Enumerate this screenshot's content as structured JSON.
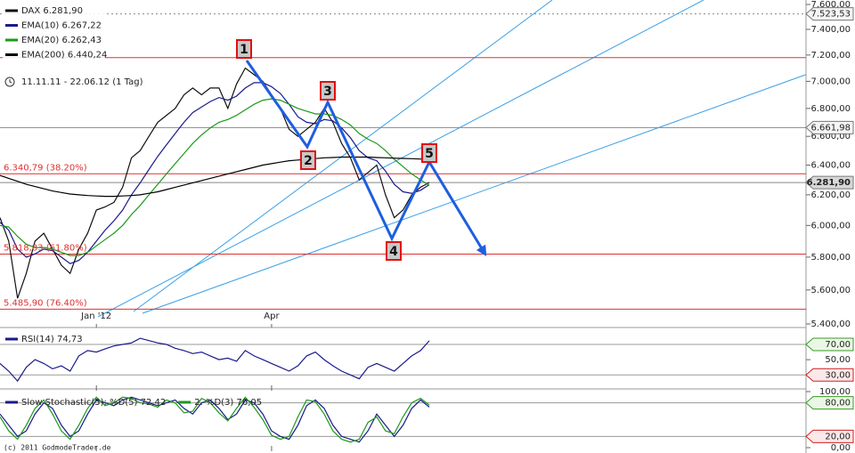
{
  "source": "(c) 2011 GodmodeTrader.de",
  "chart_data": [
    {
      "type": "line",
      "subtitle": "11.11.11 - 22.06.12 (1 Tag)",
      "log_scale": true,
      "legend": "top-left",
      "xlim": [
        0,
        92
      ],
      "ylim": [
        5400,
        7600
      ],
      "xticks": [
        {
          "value": 11,
          "label": "Jan '12"
        },
        {
          "value": 31,
          "label": "Apr"
        }
      ],
      "yticks": [
        {
          "value": 7600,
          "label": "7.600,00"
        },
        {
          "value": 7400,
          "label": "7.400,00"
        },
        {
          "value": 7200,
          "label": "7.200,00"
        },
        {
          "value": 7000,
          "label": "7.000,00"
        },
        {
          "value": 6800,
          "label": "6.800,00"
        },
        {
          "value": 6600,
          "label": "6.600,00"
        },
        {
          "value": 6400,
          "label": "6.400,00"
        },
        {
          "value": 6200,
          "label": "6.200,00"
        },
        {
          "value": 6000,
          "label": "6.000,00"
        },
        {
          "value": 5800,
          "label": "5.800,00"
        },
        {
          "value": 5600,
          "label": "5.600,00"
        },
        {
          "value": 5400,
          "label": "5.400,00"
        }
      ],
      "levels": [
        {
          "value": 7523.53,
          "color": "#888888",
          "style": "dotted",
          "tag": "7.523,53"
        },
        {
          "value": 7180,
          "color": "#e03030"
        },
        {
          "value": 6661.98,
          "color": "#888888",
          "tag": "6.661,98"
        },
        {
          "value": 6340.79,
          "color": "#e03030",
          "label": "6.340,79 (38.20%)"
        },
        {
          "value": 6281.9,
          "color": "#888888",
          "tag": "6.281,90"
        },
        {
          "value": 5818.83,
          "color": "#e03030",
          "label": "5.818,83 (61.80%)"
        },
        {
          "value": 5485.9,
          "color": "#e03030",
          "label": "5.485,90 (76.40%)"
        }
      ],
      "waves": [
        "1",
        "2",
        "3",
        "4",
        "5"
      ],
      "series": [
        {
          "name": "DAX 6.281,90",
          "color": "#111111",
          "values": [
            6050,
            5900,
            5550,
            5700,
            5900,
            5950,
            5850,
            5750,
            5700,
            5850,
            5950,
            6100,
            6120,
            6150,
            6250,
            6450,
            6500,
            6600,
            6700,
            6750,
            6800,
            6900,
            6950,
            6900,
            6950,
            6950,
            6800,
            6980,
            7100,
            7050,
            7000,
            6900,
            6800,
            6650,
            6600,
            6650,
            6700,
            6800,
            6700,
            6550,
            6450,
            6300,
            6350,
            6400,
            6200,
            6050,
            6100,
            6200,
            6250,
            6281.9
          ]
        },
        {
          "name": "EMA(10) 6.267,22",
          "color": "#1a1a8c",
          "values": [
            6020,
            5970,
            5850,
            5800,
            5820,
            5850,
            5840,
            5800,
            5760,
            5780,
            5830,
            5900,
            5970,
            6030,
            6100,
            6200,
            6280,
            6370,
            6460,
            6540,
            6620,
            6700,
            6770,
            6810,
            6850,
            6880,
            6860,
            6890,
            6950,
            6990,
            6990,
            6960,
            6910,
            6830,
            6740,
            6700,
            6690,
            6720,
            6710,
            6660,
            6590,
            6500,
            6450,
            6430,
            6360,
            6270,
            6220,
            6210,
            6230,
            6267.22
          ]
        },
        {
          "name": "EMA(20) 6.262,43",
          "color": "#1a9a1a",
          "values": [
            6000,
            5990,
            5930,
            5880,
            5860,
            5860,
            5850,
            5830,
            5810,
            5810,
            5830,
            5870,
            5910,
            5950,
            6000,
            6070,
            6130,
            6200,
            6270,
            6340,
            6410,
            6480,
            6550,
            6610,
            6660,
            6700,
            6720,
            6750,
            6790,
            6830,
            6860,
            6870,
            6860,
            6830,
            6800,
            6780,
            6760,
            6760,
            6750,
            6720,
            6680,
            6620,
            6580,
            6550,
            6500,
            6440,
            6390,
            6340,
            6300,
            6262.43
          ]
        },
        {
          "name": "EMA(200) 6.440,24",
          "color": "#000000",
          "values": [
            6330,
            6310,
            6290,
            6270,
            6255,
            6240,
            6225,
            6215,
            6205,
            6200,
            6195,
            6192,
            6190,
            6190,
            6192,
            6195,
            6200,
            6210,
            6220,
            6235,
            6250,
            6265,
            6280,
            6295,
            6310,
            6325,
            6340,
            6355,
            6370,
            6385,
            6400,
            6410,
            6420,
            6430,
            6435,
            6440,
            6445,
            6450,
            6452,
            6455,
            6455,
            6455,
            6455,
            6452,
            6450,
            6448,
            6446,
            6444,
            6442,
            6440.24
          ]
        }
      ]
    },
    {
      "type": "line",
      "legend": "top-left",
      "xlim": [
        0,
        92
      ],
      "ylim": [
        14,
        91
      ],
      "bands": [
        70,
        30
      ],
      "yticks": [
        {
          "value": 70,
          "label": "70,00"
        },
        {
          "value": 50,
          "label": "50,00"
        },
        {
          "value": 30,
          "label": "30,00"
        }
      ],
      "series": [
        {
          "name": "RSI(14) 74,73",
          "color": "#1a1a8c",
          "values": [
            45,
            35,
            22,
            40,
            50,
            45,
            38,
            42,
            35,
            55,
            62,
            60,
            64,
            68,
            70,
            72,
            78,
            75,
            72,
            70,
            65,
            62,
            58,
            60,
            55,
            50,
            52,
            48,
            62,
            55,
            50,
            45,
            40,
            35,
            42,
            55,
            60,
            50,
            42,
            35,
            30,
            25,
            40,
            45,
            40,
            35,
            45,
            55,
            62,
            74.73
          ]
        }
      ]
    },
    {
      "type": "line",
      "legend": "top-left",
      "xlim": [
        0,
        92
      ],
      "ylim": [
        0,
        100
      ],
      "bands": [
        80,
        20
      ],
      "yticks": [
        {
          "value": 100,
          "label": "100,00"
        },
        {
          "value": 80,
          "label": "80,00"
        },
        {
          "value": 20,
          "label": "20,00"
        },
        {
          "value": 0,
          "label": "0,00"
        }
      ],
      "series": [
        {
          "name": "Slow Stochastic(5): %D(5) 72,42",
          "color": "#1a1a8c",
          "values": [
            60,
            40,
            20,
            30,
            60,
            80,
            70,
            40,
            20,
            30,
            60,
            85,
            80,
            75,
            85,
            90,
            85,
            80,
            75,
            80,
            85,
            70,
            60,
            80,
            85,
            70,
            50,
            60,
            85,
            80,
            60,
            30,
            20,
            15,
            40,
            75,
            85,
            70,
            40,
            20,
            15,
            10,
            30,
            60,
            40,
            20,
            40,
            70,
            85,
            72.42
          ]
        },
        {
          "name": "2. %D(3) 76,05",
          "color": "#1a9a1a",
          "values": [
            55,
            30,
            15,
            40,
            70,
            85,
            60,
            30,
            15,
            40,
            70,
            90,
            75,
            80,
            90,
            88,
            80,
            78,
            72,
            85,
            80,
            62,
            65,
            88,
            80,
            62,
            48,
            70,
            90,
            72,
            50,
            22,
            15,
            20,
            55,
            85,
            82,
            60,
            30,
            15,
            10,
            15,
            45,
            55,
            30,
            25,
            55,
            80,
            88,
            76.05
          ]
        }
      ]
    }
  ]
}
